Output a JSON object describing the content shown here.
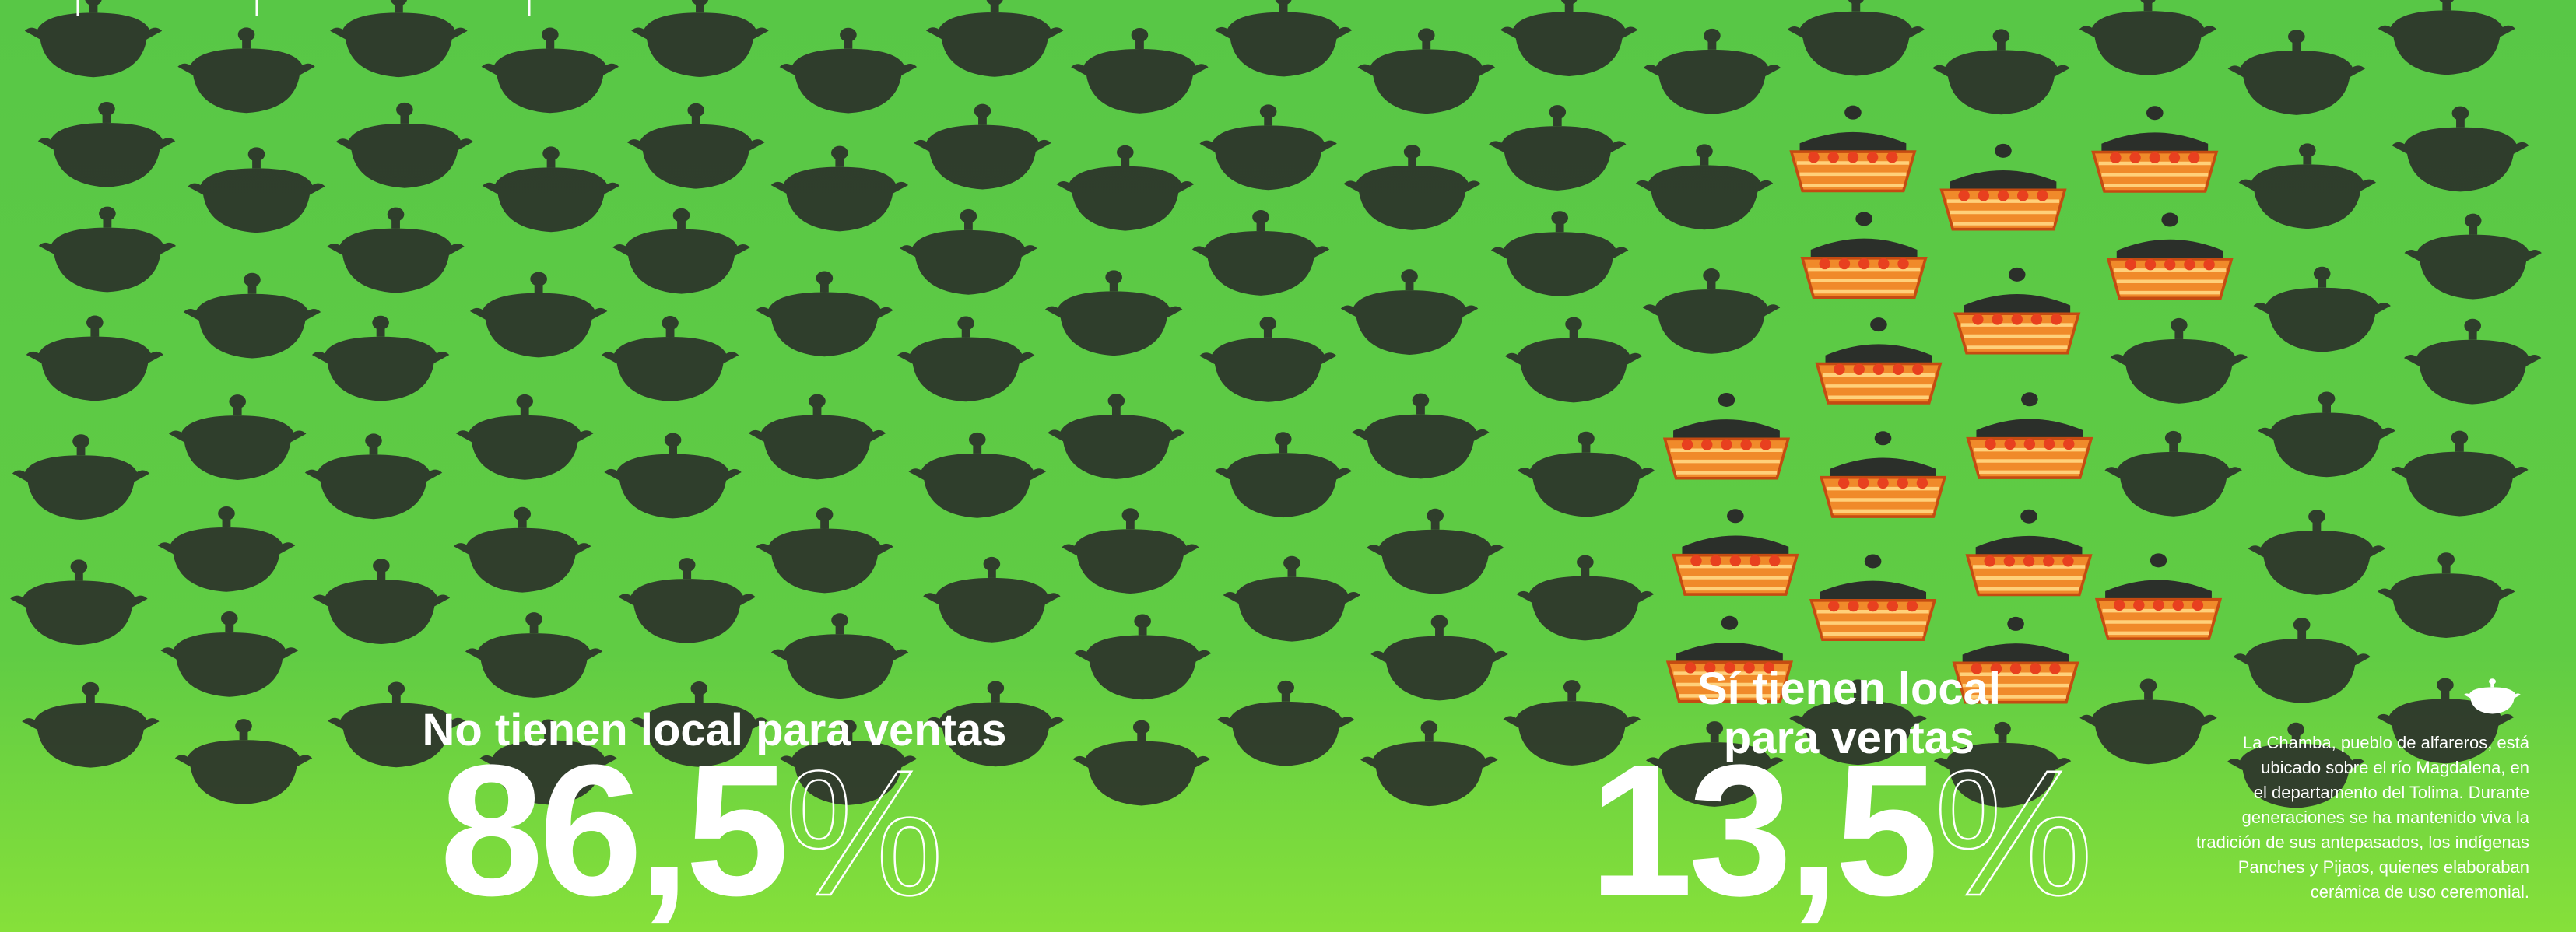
{
  "left": {
    "label": "No tienen local para ventas",
    "number": "86,5",
    "unit": "%"
  },
  "right": {
    "label_lines": [
      "Sí tienen local",
      "para ventas"
    ],
    "number": "13,5",
    "unit": "%"
  },
  "note": {
    "lines": [
      "La Chamba, pueblo de alfareros, está",
      "ubicado sobre el río Magdalena, en",
      "el departamento del Tolima. Durante",
      "generaciones se ha mantenido viva la",
      "tradición de sus antepasados, los indígenas",
      "Panches y Pijaos, quienes elaboraban",
      "cerámica de uso ceremonial."
    ]
  }
}
